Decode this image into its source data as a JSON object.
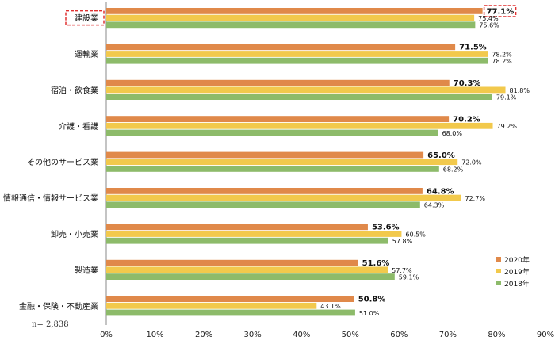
{
  "chart_data": {
    "type": "bar",
    "orientation": "horizontal",
    "categories": [
      "建設業",
      "運輸業",
      "宿泊・飲食業",
      "介護・看護",
      "その他のサービス業",
      "情報通信・情報サービス業",
      "卸売・小売業",
      "製造業",
      "金融・保険・不動産業"
    ],
    "series": [
      {
        "name": "2020年",
        "color": "#E0894A",
        "values": [
          77.1,
          71.5,
          70.3,
          70.2,
          65.0,
          64.8,
          53.6,
          51.6,
          50.8
        ]
      },
      {
        "name": "2019年",
        "color": "#F2C94C",
        "values": [
          75.4,
          78.2,
          81.8,
          79.2,
          72.0,
          72.7,
          60.5,
          57.7,
          43.1
        ]
      },
      {
        "name": "2018年",
        "color": "#8DBB6A",
        "values": [
          75.6,
          78.2,
          79.1,
          68.0,
          68.2,
          64.3,
          57.8,
          59.1,
          51.0
        ]
      }
    ],
    "xlim": [
      0,
      90
    ],
    "xticks": [
      "0%",
      "10%",
      "20%",
      "30%",
      "40%",
      "50%",
      "60%",
      "70%",
      "80%",
      "90%"
    ],
    "title": "",
    "xlabel": "",
    "ylabel": "",
    "legend": "bottom-right",
    "highlight_category": "建設業",
    "highlight_color": "#E03030"
  },
  "note": "n= 2,838"
}
